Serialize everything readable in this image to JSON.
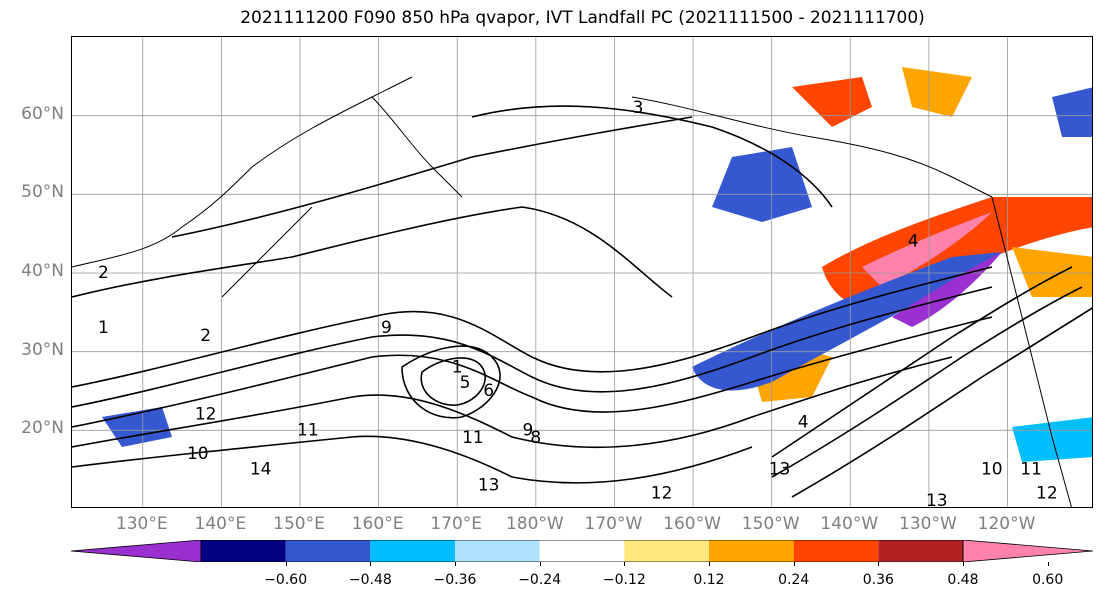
{
  "title": "2021111200 F090 850 hPa qvapor, IVT Landfall PC (2021111500 - 2021111700)",
  "map": {
    "lat_labels": [
      {
        "text": "60°N",
        "lat": 60
      },
      {
        "text": "50°N",
        "lat": 50
      },
      {
        "text": "40°N",
        "lat": 40
      },
      {
        "text": "30°N",
        "lat": 30
      },
      {
        "text": "20°N",
        "lat": 20
      }
    ],
    "lon_labels": [
      {
        "text": "130°E",
        "lon": 130
      },
      {
        "text": "140°E",
        "lon": 140
      },
      {
        "text": "150°E",
        "lon": 150
      },
      {
        "text": "160°E",
        "lon": 160
      },
      {
        "text": "170°E",
        "lon": 170
      },
      {
        "text": "180°W",
        "lon": 180
      },
      {
        "text": "170°W",
        "lon": 190
      },
      {
        "text": "160°W",
        "lon": 200
      },
      {
        "text": "150°W",
        "lon": 210
      },
      {
        "text": "140°W",
        "lon": 220
      },
      {
        "text": "130°W",
        "lon": 230
      },
      {
        "text": "120°W",
        "lon": 240
      }
    ],
    "lon_range": [
      121,
      251
    ],
    "lat_range": [
      10,
      70
    ],
    "contour_labels": [
      {
        "text": "3",
        "lon": 193,
        "lat": 61
      },
      {
        "text": "4",
        "lon": 228,
        "lat": 44
      },
      {
        "text": "2",
        "lon": 125,
        "lat": 40
      },
      {
        "text": "1",
        "lon": 125,
        "lat": 33
      },
      {
        "text": "2",
        "lon": 138,
        "lat": 32
      },
      {
        "text": "9",
        "lon": 161,
        "lat": 33
      },
      {
        "text": "5",
        "lon": 171,
        "lat": 26
      },
      {
        "text": "6",
        "lon": 174,
        "lat": 25
      },
      {
        "text": "1",
        "lon": 170,
        "lat": 28
      },
      {
        "text": "9",
        "lon": 179,
        "lat": 20
      },
      {
        "text": "8",
        "lon": 180,
        "lat": 19
      },
      {
        "text": "11",
        "lon": 172,
        "lat": 19
      },
      {
        "text": "12",
        "lon": 138,
        "lat": 22
      },
      {
        "text": "11",
        "lon": 151,
        "lat": 20
      },
      {
        "text": "10",
        "lon": 137,
        "lat": 17
      },
      {
        "text": "14",
        "lon": 145,
        "lat": 15
      },
      {
        "text": "13",
        "lon": 174,
        "lat": 13
      },
      {
        "text": "12",
        "lon": 196,
        "lat": 12
      },
      {
        "text": "4",
        "lon": 214,
        "lat": 21
      },
      {
        "text": "13",
        "lon": 211,
        "lat": 15
      },
      {
        "text": "13",
        "lon": 231,
        "lat": 11
      },
      {
        "text": "10",
        "lon": 238,
        "lat": 15
      },
      {
        "text": "11",
        "lon": 243,
        "lat": 15
      },
      {
        "text": "12",
        "lon": 245,
        "lat": 12
      }
    ]
  },
  "colorbar": {
    "levels": [
      -0.6,
      -0.48,
      -0.36,
      -0.24,
      -0.12,
      0.12,
      0.24,
      0.36,
      0.48,
      0.6
    ],
    "tick_labels": [
      "−0.60",
      "−0.48",
      "−0.36",
      "−0.24",
      "−0.12",
      "0.12",
      "0.24",
      "0.36",
      "0.48",
      "0.60"
    ],
    "colors": [
      "#9b30d0",
      "#000080",
      "#3558d0",
      "#00bfff",
      "#b0e2ff",
      "#ffffff",
      "#ffe97f",
      "#ffa500",
      "#ff4500",
      "#b22222",
      "#ff82ab"
    ]
  }
}
